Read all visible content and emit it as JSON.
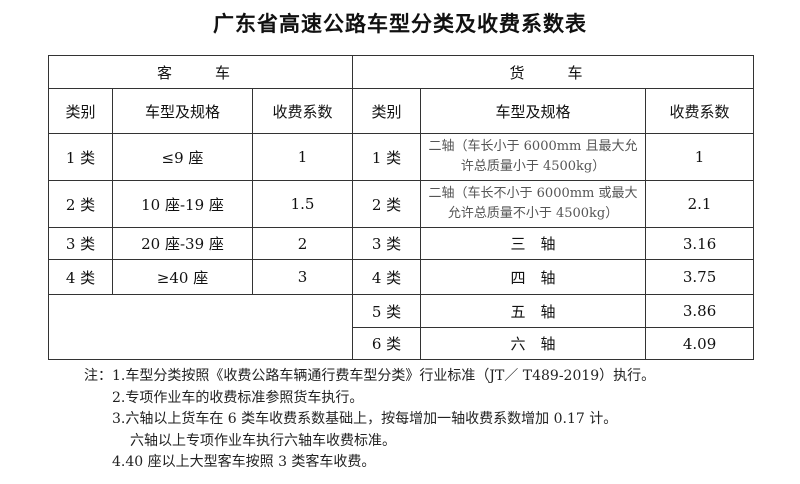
{
  "title": "广东省高速公路车型分类及收费系数表",
  "passenger": {
    "header": "客　车",
    "columns": [
      "类别",
      "车型及规格",
      "收费系数"
    ],
    "rows": [
      [
        "1 类",
        "≤9 座",
        "1"
      ],
      [
        "2 类",
        "10 座-19 座",
        "1.5"
      ],
      [
        "3 类",
        "20 座-39 座",
        "2"
      ],
      [
        "4 类",
        "≥40 座",
        "3"
      ]
    ]
  },
  "freight": {
    "header": "货　车",
    "columns": [
      "类别",
      "车型及规格",
      "收费系数"
    ],
    "rows": [
      [
        "1 类",
        "二轴（车长小于 6000mm 且最大允许总质量小于 4500kg）",
        "1"
      ],
      [
        "2 类",
        "二轴（车长不小于 6000mm 或最大允许总质量不小于 4500kg）",
        "2.1"
      ],
      [
        "3 类",
        "三　轴",
        "3.16"
      ],
      [
        "4 类",
        "四　轴",
        "3.75"
      ],
      [
        "5 类",
        "五　轴",
        "3.86"
      ],
      [
        "6 类",
        "六　轴",
        "4.09"
      ]
    ]
  },
  "notes": [
    "注：1.车型分类按照《收费公路车辆通行费车型分类》行业标准（JT／ T489-2019）执行。",
    "2.专项作业车的收费标准参照货车执行。",
    "3.六轴以上货车在 6 类车收费系数基础上，按每增加一轴收费系数增加 0.17 计。",
    "六轴以上专项作业车执行六轴车收费标准。",
    "4.40 座以上大型客车按照 3 类客车收费。"
  ]
}
